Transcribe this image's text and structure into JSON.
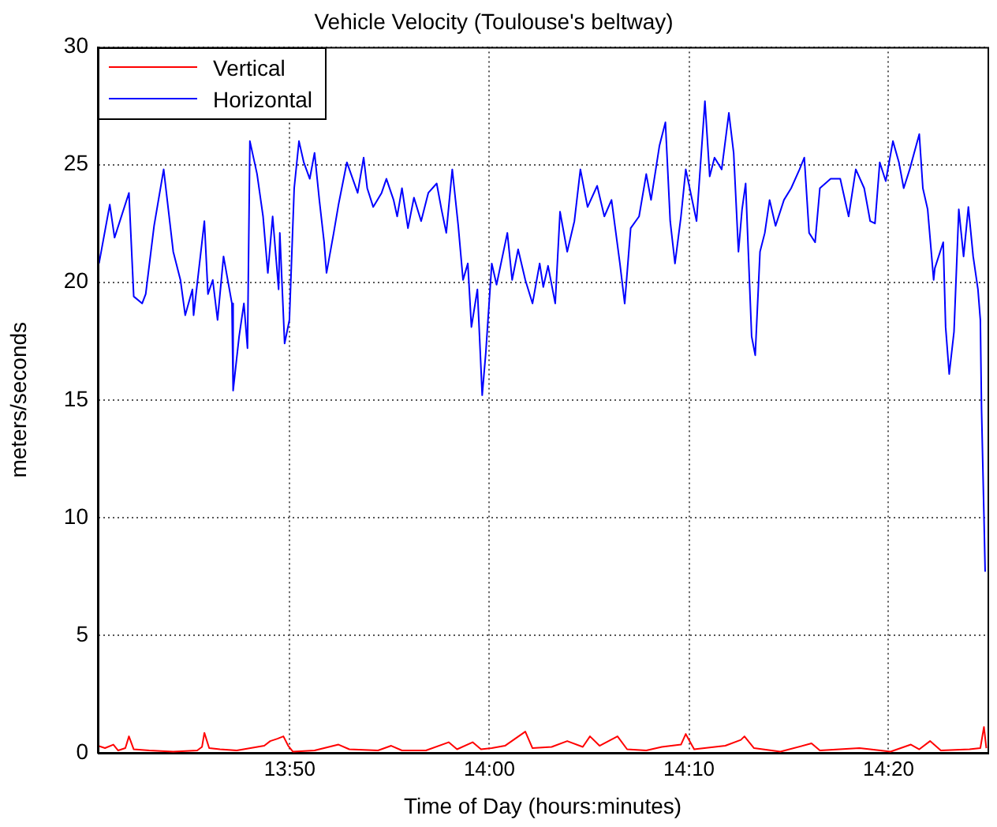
{
  "chart_data": {
    "type": "line",
    "title": "Vehicle Velocity (Toulouse's beltway)",
    "xlabel": "Time of Day (hours:minutes)",
    "ylabel": "meters/seconds",
    "xlim": [
      13.673,
      14.416
    ],
    "xticks": [
      {
        "value": 13.8333,
        "label": "13:50"
      },
      {
        "value": 14,
        "label": "14:00"
      },
      {
        "value": 14.1667,
        "label": "14:10"
      },
      {
        "value": 14.3333,
        "label": "14:20"
      }
    ],
    "ylim": [
      0,
      30
    ],
    "yticks": [
      0,
      5,
      10,
      15,
      20,
      25,
      30
    ],
    "grid": true,
    "legend": "top left",
    "marker": "none",
    "line_style": "solid",
    "series": [
      {
        "name": "Vertical",
        "color": "#ff0000",
        "x": [
          13.673,
          13.679,
          13.686,
          13.69,
          13.696,
          13.699,
          13.703,
          13.716,
          13.736,
          13.756,
          13.76,
          13.762,
          13.766,
          13.775,
          13.789,
          13.812,
          13.817,
          13.823,
          13.828,
          13.832,
          13.836,
          13.854,
          13.874,
          13.883,
          13.907,
          13.918,
          13.927,
          13.947,
          13.966,
          13.973,
          13.986,
          13.993,
          14.002,
          14.013,
          14.03,
          14.036,
          14.052,
          14.065,
          14.078,
          14.084,
          14.092,
          14.107,
          14.115,
          14.131,
          14.144,
          14.16,
          14.164,
          14.171,
          14.197,
          14.21,
          14.213,
          14.221,
          14.243,
          14.269,
          14.276,
          14.309,
          14.318,
          14.335,
          14.352,
          14.359,
          14.368,
          14.377,
          14.401,
          14.41,
          14.413,
          14.415
        ],
        "values": [
          0.3,
          0.2,
          0.35,
          0.1,
          0.2,
          0.7,
          0.15,
          0.1,
          0.05,
          0.1,
          0.25,
          0.85,
          0.2,
          0.15,
          0.1,
          0.3,
          0.5,
          0.6,
          0.7,
          0.3,
          0.05,
          0.1,
          0.35,
          0.15,
          0.1,
          0.3,
          0.1,
          0.1,
          0.45,
          0.15,
          0.45,
          0.15,
          0.2,
          0.3,
          0.9,
          0.2,
          0.25,
          0.5,
          0.25,
          0.7,
          0.3,
          0.7,
          0.15,
          0.1,
          0.25,
          0.35,
          0.8,
          0.15,
          0.3,
          0.55,
          0.7,
          0.2,
          0.05,
          0.4,
          0.1,
          0.2,
          0.15,
          0.05,
          0.35,
          0.15,
          0.5,
          0.1,
          0.15,
          0.2,
          1.1,
          0.2
        ]
      },
      {
        "name": "Horizontal",
        "color": "#0000ff",
        "x": [
          13.674,
          13.683,
          13.687,
          13.699,
          13.703,
          13.71,
          13.713,
          13.72,
          13.728,
          13.736,
          13.742,
          13.746,
          13.752,
          13.753,
          13.762,
          13.765,
          13.769,
          13.773,
          13.778,
          13.785,
          13.786,
          13.791,
          13.795,
          13.798,
          13.8,
          13.806,
          13.811,
          13.815,
          13.819,
          13.824,
          13.825,
          13.829,
          13.833,
          13.837,
          13.841,
          13.845,
          13.85,
          13.854,
          13.858,
          13.862,
          13.864,
          13.87,
          13.874,
          13.881,
          13.89,
          13.895,
          13.898,
          13.903,
          13.91,
          13.914,
          13.92,
          13.923,
          13.927,
          13.932,
          13.937,
          13.943,
          13.949,
          13.956,
          13.96,
          13.964,
          13.969,
          13.974,
          13.978,
          13.982,
          13.985,
          13.99,
          13.994,
          13.997,
          14.002,
          14.006,
          14.015,
          14.019,
          14.024,
          14.03,
          14.036,
          14.042,
          14.045,
          14.049,
          14.055,
          14.059,
          14.065,
          14.071,
          14.076,
          14.082,
          14.09,
          14.096,
          14.102,
          14.109,
          14.113,
          14.118,
          14.125,
          14.131,
          14.135,
          14.142,
          14.147,
          14.151,
          14.155,
          14.16,
          14.164,
          14.173,
          14.18,
          14.184,
          14.188,
          14.194,
          14.2,
          14.204,
          14.208,
          14.211,
          14.214,
          14.219,
          14.222,
          14.226,
          14.23,
          14.234,
          14.239,
          14.246,
          14.252,
          14.259,
          14.263,
          14.267,
          14.272,
          14.276,
          14.285,
          14.293,
          14.3,
          14.306,
          14.313,
          14.318,
          14.322,
          14.326,
          14.331,
          14.337,
          14.342,
          14.346,
          14.351,
          14.359,
          14.362,
          14.366,
          14.371,
          14.372,
          14.379,
          14.381,
          14.384,
          14.388,
          14.392,
          14.396,
          14.4,
          14.404,
          14.408,
          14.41,
          14.411,
          14.413,
          14.414
        ],
        "values": [
          20.8,
          23.3,
          21.9,
          23.8,
          19.4,
          19.1,
          19.5,
          22.4,
          24.8,
          21.3,
          20.1,
          18.6,
          19.7,
          18.6,
          22.6,
          19.5,
          20.1,
          18.4,
          21.1,
          19.1,
          15.4,
          17.7,
          19.1,
          17.2,
          26.0,
          24.6,
          22.8,
          20.4,
          22.8,
          19.7,
          22.1,
          17.4,
          18.4,
          24.0,
          26.0,
          25.1,
          24.4,
          25.5,
          23.5,
          21.7,
          20.4,
          22.1,
          23.3,
          25.1,
          23.8,
          25.3,
          24.0,
          23.2,
          23.8,
          24.4,
          23.5,
          22.8,
          24.0,
          22.3,
          23.6,
          22.6,
          23.8,
          24.2,
          23.1,
          22.1,
          24.8,
          22.4,
          20.1,
          20.8,
          18.1,
          19.7,
          15.2,
          17.0,
          20.8,
          19.9,
          22.1,
          20.1,
          21.4,
          20.1,
          19.1,
          20.8,
          19.8,
          20.7,
          19.1,
          23.0,
          21.3,
          22.6,
          24.8,
          23.2,
          24.1,
          22.8,
          23.5,
          20.8,
          19.1,
          22.3,
          22.8,
          24.6,
          23.5,
          25.8,
          26.8,
          22.6,
          20.8,
          22.8,
          24.8,
          22.6,
          27.7,
          24.5,
          25.3,
          24.8,
          27.2,
          25.5,
          21.3,
          23.1,
          24.2,
          17.7,
          16.9,
          21.3,
          22.1,
          23.5,
          22.4,
          23.5,
          24.0,
          24.8,
          25.3,
          22.1,
          21.7,
          24.0,
          24.4,
          24.4,
          22.8,
          24.8,
          24.0,
          22.6,
          22.5,
          25.1,
          24.3,
          26.0,
          25.1,
          24.0,
          24.8,
          26.3,
          24.0,
          23.1,
          20.1,
          20.6,
          21.7,
          18.1,
          16.1,
          17.9,
          23.1,
          21.1,
          23.2,
          21.1,
          19.7,
          18.4,
          14.6,
          10.1,
          7.7
        ]
      }
    ]
  }
}
